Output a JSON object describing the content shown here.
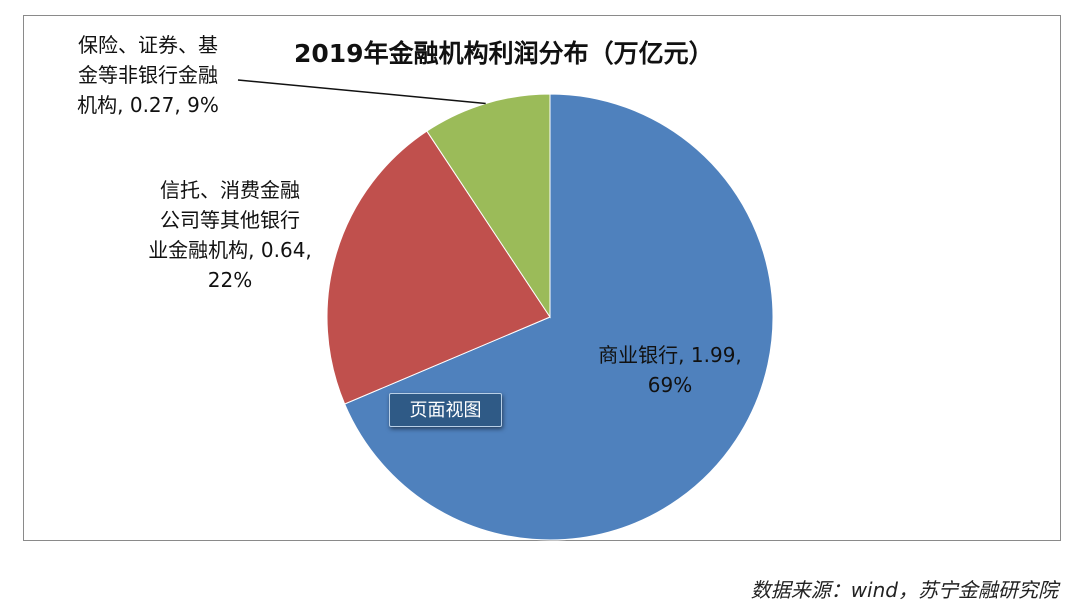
{
  "chart_data": {
    "type": "pie",
    "title": "2019年金融机构利润分布（万亿元）",
    "unit": "万亿元",
    "slices": [
      {
        "name": "商业银行",
        "value": 1.99,
        "percent": 69,
        "color": "#4f81bd",
        "label_lines": [
          "商业银行, 1.99,",
          "69%"
        ]
      },
      {
        "name": "信托、消费金融公司等其他银行业金融机构",
        "value": 0.64,
        "percent": 22,
        "color": "#c0504d",
        "label_lines": [
          "信托、消费金融",
          "公司等其他银行",
          "业金融机构, 0.64,",
          "22%"
        ]
      },
      {
        "name": "保险、证券、基金等非银行金融机构",
        "value": 0.27,
        "percent": 9,
        "color": "#9bbb59",
        "label_lines": [
          "保险、证券、基",
          "金等非银行金融",
          "机构, 0.27, 9%"
        ]
      }
    ]
  },
  "overlay_badge": "页面视图",
  "source_note": "数据来源：wind，苏宁金融研究院"
}
